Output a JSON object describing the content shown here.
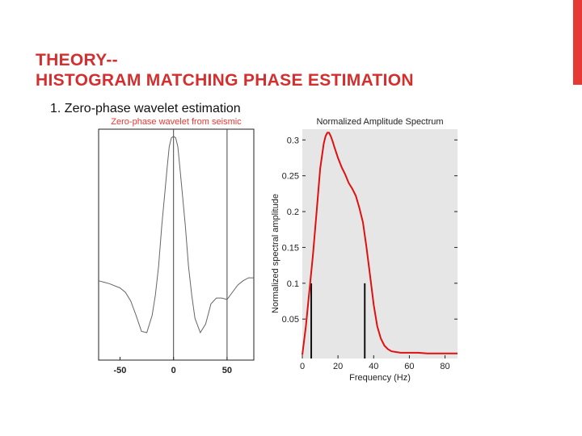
{
  "slide": {
    "title_line1": "THEORY--",
    "title_line2": "HISTOGRAM MATCHING PHASE ESTIMATION",
    "bullet": "1. Zero-phase wavelet estimation",
    "accent_color": "#d32f2f"
  },
  "chart_data": [
    {
      "type": "line",
      "title": "Zero-phase wavelet from seismic",
      "title_color": "#e53935",
      "line_color": "#666666",
      "xlim": [
        -70,
        75
      ],
      "ylim": [
        -0.55,
        1.05
      ],
      "xticks": [
        -50,
        0,
        50
      ],
      "vertical_markers": [
        0,
        50
      ],
      "x": [
        -70,
        -60,
        -50,
        -45,
        -40,
        -35,
        -30,
        -25,
        -20,
        -17,
        -14,
        -11,
        -8,
        -6,
        -4,
        -2,
        0,
        2,
        4,
        6,
        8,
        11,
        14,
        17,
        20,
        25,
        30,
        35,
        40,
        45,
        50,
        55,
        60,
        65,
        70,
        75
      ],
      "y": [
        0,
        -0.02,
        -0.05,
        -0.08,
        -0.14,
        -0.24,
        -0.35,
        -0.36,
        -0.24,
        -0.1,
        0.1,
        0.38,
        0.62,
        0.78,
        0.93,
        0.99,
        1.0,
        0.99,
        0.93,
        0.78,
        0.62,
        0.38,
        0.1,
        -0.1,
        -0.26,
        -0.36,
        -0.3,
        -0.16,
        -0.12,
        -0.12,
        -0.13,
        -0.08,
        -0.03,
        0.0,
        0.02,
        0.02
      ]
    },
    {
      "type": "line",
      "title": "Normalized Amplitude Spectrum",
      "xlabel": "Frequency (Hz)",
      "ylabel": "Normalized spectral amplitude",
      "line_color": "#e01010",
      "background": "#e6e6e6",
      "xlim": [
        0,
        87
      ],
      "ylim": [
        -0.005,
        0.315
      ],
      "xticks": [
        0,
        20,
        40,
        60,
        80
      ],
      "yticks": [
        0.05,
        0.1,
        0.15,
        0.2,
        0.25,
        0.3
      ],
      "ytick_labels": [
        "0.05",
        "0.1",
        "0.15",
        "0.2",
        "0.25",
        "0.3"
      ],
      "vertical_markers": [
        {
          "x": 5,
          "y": 0.1
        },
        {
          "x": 35,
          "y": 0.1
        }
      ],
      "x": [
        0,
        2,
        4,
        6,
        8,
        10,
        12,
        13,
        14,
        15,
        16,
        17,
        18,
        20,
        22,
        24,
        26,
        28,
        30,
        32,
        34,
        36,
        38,
        40,
        42,
        44,
        46,
        48,
        50,
        55,
        60,
        65,
        70,
        75,
        80,
        87
      ],
      "y": [
        0.0,
        0.04,
        0.09,
        0.14,
        0.2,
        0.26,
        0.295,
        0.305,
        0.31,
        0.31,
        0.305,
        0.298,
        0.29,
        0.275,
        0.262,
        0.252,
        0.24,
        0.232,
        0.222,
        0.205,
        0.185,
        0.15,
        0.11,
        0.07,
        0.04,
        0.023,
        0.013,
        0.008,
        0.005,
        0.003,
        0.003,
        0.003,
        0.002,
        0.002,
        0.002,
        0.002
      ]
    }
  ]
}
